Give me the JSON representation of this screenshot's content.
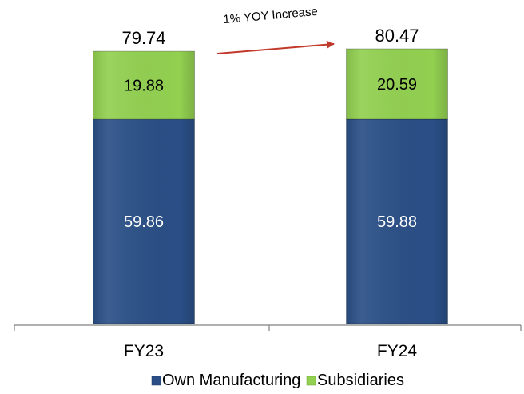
{
  "chart_data": {
    "type": "bar",
    "stacked": true,
    "categories": [
      "FY23",
      "FY24"
    ],
    "series": [
      {
        "name": "Own Manufacturing",
        "values": [
          59.86,
          59.88
        ],
        "color": "#2a4f86",
        "label_color": "#ffffff"
      },
      {
        "name": "Subsidiaries",
        "values": [
          19.88,
          20.59
        ],
        "color": "#92d050",
        "label_color": "#000000"
      }
    ],
    "totals": [
      "79.74",
      "80.47"
    ],
    "segment_labels": [
      [
        "59.86",
        "59.88"
      ],
      [
        "19.88",
        "20.59"
      ]
    ],
    "ylim": [
      0,
      80.47
    ],
    "grid": false,
    "legend_position": "bottom",
    "annotation": {
      "text": "1% YOY Increase",
      "from": "FY23",
      "to": "FY24",
      "arrow_color": "#c0392b"
    },
    "axis_color": "#808080"
  }
}
